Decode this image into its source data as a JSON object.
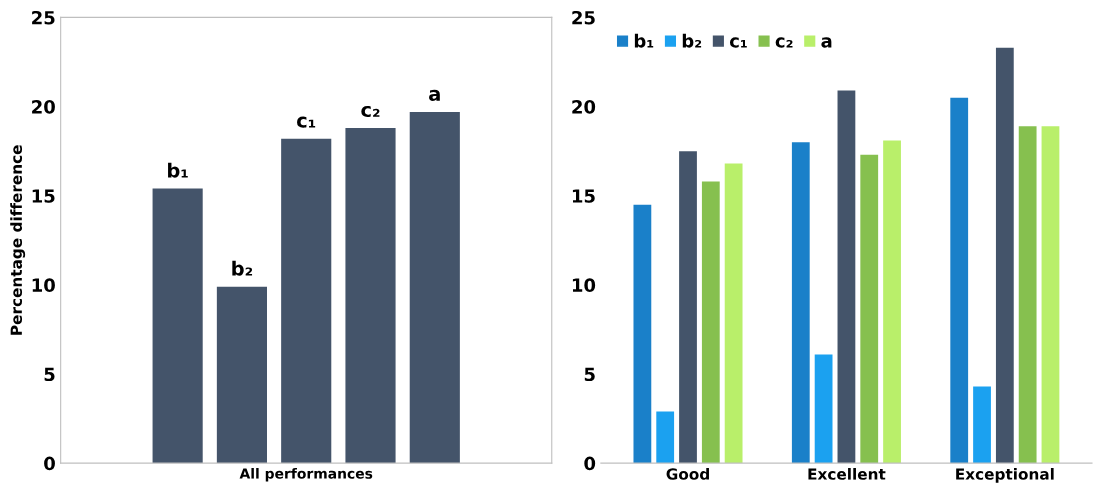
{
  "chart_data": [
    {
      "type": "bar",
      "ylabel": "Percentage difference",
      "categories": [
        "All performances"
      ],
      "series": [
        {
          "name": "b₁",
          "color": "#44546a",
          "values": [
            15.4
          ]
        },
        {
          "name": "b₂",
          "color": "#44546a",
          "values": [
            9.9
          ]
        },
        {
          "name": "c₁",
          "color": "#44546a",
          "values": [
            18.2
          ]
        },
        {
          "name": "c₂",
          "color": "#44546a",
          "values": [
            18.8
          ]
        },
        {
          "name": "a",
          "color": "#44546a",
          "values": [
            19.7
          ]
        }
      ],
      "ylim": [
        0,
        25
      ],
      "yticks": [
        0,
        5,
        10,
        15,
        20,
        25
      ],
      "grid": false,
      "legend": false
    },
    {
      "type": "bar",
      "categories": [
        "Good",
        "Excellent",
        "Exceptional"
      ],
      "series": [
        {
          "name": "b₁",
          "color": "#1a80c9",
          "values": [
            14.5,
            18.0,
            20.5
          ]
        },
        {
          "name": "b₂",
          "color": "#1ba1f0",
          "values": [
            2.9,
            6.1,
            4.3
          ]
        },
        {
          "name": "c₁",
          "color": "#44546a",
          "values": [
            17.5,
            20.9,
            23.3
          ]
        },
        {
          "name": "c₂",
          "color": "#86c04f",
          "values": [
            15.8,
            17.3,
            18.9
          ]
        },
        {
          "name": "a",
          "color": "#b9ef6a",
          "values": [
            16.8,
            18.1,
            18.9
          ]
        }
      ],
      "ylim": [
        0,
        25
      ],
      "yticks": [
        0,
        5,
        10,
        15,
        20,
        25
      ],
      "grid": false,
      "legend": "top left",
      "marker": "square"
    }
  ]
}
